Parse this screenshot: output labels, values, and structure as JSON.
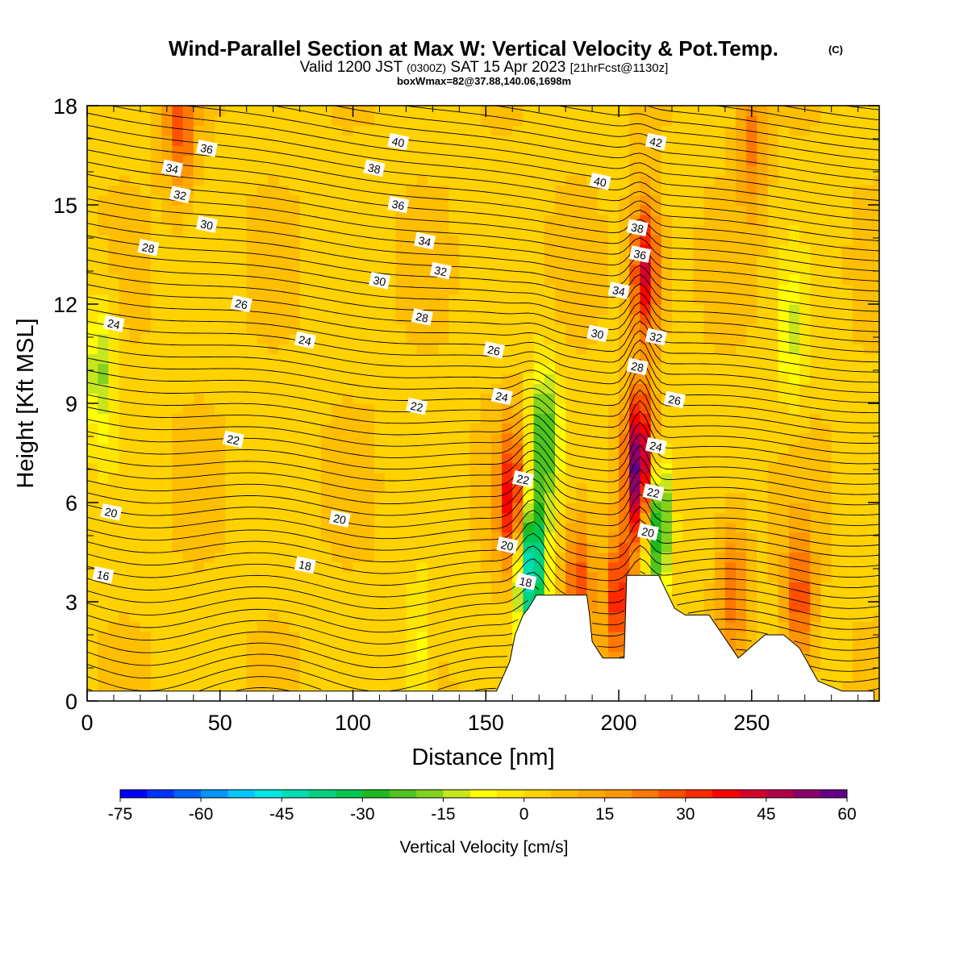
{
  "header": {
    "title": "Wind-Parallel Section at Max W: Vertical Velocity & Pot.Temp.",
    "copyright": "(C)",
    "valid_prefix": "Valid 1200 JST",
    "valid_z": "(0300Z)",
    "valid_date": "SAT 15 Apr 2023",
    "forecast": "[21hrFcst@1130z]",
    "boxwmax": "boxWmax=82@37.88,140.06,1698m"
  },
  "chart_data": {
    "type": "heatmap",
    "xlabel": "Distance [nm]",
    "ylabel": "Height [Kft MSL]",
    "xlim": [
      0,
      298
    ],
    "ylim": [
      0,
      18
    ],
    "xticks": [
      0,
      50,
      100,
      150,
      200,
      250
    ],
    "yticks": [
      0,
      3,
      6,
      9,
      12,
      15,
      18
    ],
    "colorbar": {
      "label": "Vertical Velocity [cm/s]",
      "min": -75,
      "max": 60,
      "step": 5,
      "tick_values": [
        -75,
        -60,
        -45,
        -30,
        -15,
        0,
        15,
        30,
        45,
        60
      ],
      "tick_labels": [
        "-75",
        "-60",
        "-45",
        "-30",
        "-15",
        "0",
        "15",
        "30",
        "45",
        "60"
      ],
      "colors": [
        "#0000ff",
        "#0032ff",
        "#0064ff",
        "#0096ff",
        "#00c8ff",
        "#00e6e6",
        "#00dcb4",
        "#00d282",
        "#00c850",
        "#1eb91e",
        "#50c31e",
        "#82d21e",
        "#c8e61e",
        "#ffff00",
        "#ffe600",
        "#ffd200",
        "#ffbe00",
        "#ffaa00",
        "#ff9600",
        "#ff7800",
        "#ff5000",
        "#ff2800",
        "#ff0000",
        "#d7002d",
        "#b4004b",
        "#8c0069",
        "#640087"
      ]
    },
    "w_features": [
      {
        "x": 5,
        "y": 10.0,
        "w": -20
      },
      {
        "x": 35,
        "y": 17.5,
        "w": 25
      },
      {
        "x": 125,
        "y": 1.5,
        "w": -12
      },
      {
        "x": 160,
        "y": 6.0,
        "w": 35
      },
      {
        "x": 167,
        "y": 4.0,
        "w": -55
      },
      {
        "x": 172,
        "y": 8.0,
        "w": -30
      },
      {
        "x": 185,
        "y": 3.5,
        "w": 25
      },
      {
        "x": 200,
        "y": 3.0,
        "w": 30
      },
      {
        "x": 208,
        "y": 7.0,
        "w": 60
      },
      {
        "x": 210,
        "y": 13.0,
        "w": 40
      },
      {
        "x": 214,
        "y": 5.5,
        "w": -45
      },
      {
        "x": 243,
        "y": 3.5,
        "w": 20
      },
      {
        "x": 265,
        "y": 11.0,
        "w": -15
      },
      {
        "x": 268,
        "y": 3.0,
        "w": 25
      },
      {
        "x": 250,
        "y": 17.0,
        "w": 18
      }
    ],
    "terrain": [
      [
        0,
        0.3
      ],
      [
        154,
        0.3
      ],
      [
        159,
        1.2
      ],
      [
        161,
        2.0
      ],
      [
        164,
        2.6
      ],
      [
        166,
        2.8
      ],
      [
        169,
        3.2
      ],
      [
        188,
        3.2
      ],
      [
        189,
        2.6
      ],
      [
        190,
        1.8
      ],
      [
        194,
        1.3
      ],
      [
        202,
        1.3
      ],
      [
        203,
        3.8
      ],
      [
        215,
        3.8
      ],
      [
        221,
        2.8
      ],
      [
        225,
        2.6
      ],
      [
        234,
        2.6
      ],
      [
        245,
        1.3
      ],
      [
        255,
        2.0
      ],
      [
        262,
        2.0
      ],
      [
        268,
        1.6
      ],
      [
        275,
        0.6
      ],
      [
        284,
        0.3
      ],
      [
        296,
        0.3
      ]
    ],
    "theta_levels": [
      16,
      18,
      20,
      22,
      24,
      26,
      28,
      30,
      32,
      34,
      36,
      38,
      40,
      42
    ],
    "contour_labels": [
      {
        "text": "36",
        "x": 45,
        "y": 16.7
      },
      {
        "text": "34",
        "x": 32,
        "y": 16.1
      },
      {
        "text": "32",
        "x": 35,
        "y": 15.3
      },
      {
        "text": "30",
        "x": 45,
        "y": 14.4
      },
      {
        "text": "28",
        "x": 23,
        "y": 13.7
      },
      {
        "text": "26",
        "x": 58,
        "y": 12.0
      },
      {
        "text": "24",
        "x": 10,
        "y": 11.4
      },
      {
        "text": "40",
        "x": 117,
        "y": 16.9
      },
      {
        "text": "38",
        "x": 108,
        "y": 16.1
      },
      {
        "text": "36",
        "x": 117,
        "y": 15.0
      },
      {
        "text": "34",
        "x": 127,
        "y": 13.9
      },
      {
        "text": "32",
        "x": 133,
        "y": 13.0
      },
      {
        "text": "30",
        "x": 110,
        "y": 12.7
      },
      {
        "text": "28",
        "x": 126,
        "y": 11.6
      },
      {
        "text": "26",
        "x": 153,
        "y": 10.6
      },
      {
        "text": "24",
        "x": 82,
        "y": 10.9
      },
      {
        "text": "24",
        "x": 156,
        "y": 9.2
      },
      {
        "text": "22",
        "x": 124,
        "y": 8.9
      },
      {
        "text": "22",
        "x": 55,
        "y": 7.9
      },
      {
        "text": "22",
        "x": 164,
        "y": 6.7
      },
      {
        "text": "20",
        "x": 9,
        "y": 5.7
      },
      {
        "text": "20",
        "x": 95,
        "y": 5.5
      },
      {
        "text": "20",
        "x": 158,
        "y": 4.7
      },
      {
        "text": "18",
        "x": 82,
        "y": 4.1
      },
      {
        "text": "18",
        "x": 165,
        "y": 3.6
      },
      {
        "text": "16",
        "x": 6,
        "y": 3.8
      },
      {
        "text": "40",
        "x": 193,
        "y": 15.7
      },
      {
        "text": "42",
        "x": 214,
        "y": 16.9
      },
      {
        "text": "38",
        "x": 207,
        "y": 14.3
      },
      {
        "text": "36",
        "x": 208,
        "y": 13.5
      },
      {
        "text": "34",
        "x": 200,
        "y": 12.4
      },
      {
        "text": "32",
        "x": 214,
        "y": 11.0
      },
      {
        "text": "30",
        "x": 192,
        "y": 11.1
      },
      {
        "text": "28",
        "x": 207,
        "y": 10.1
      },
      {
        "text": "26",
        "x": 221,
        "y": 9.1
      },
      {
        "text": "24",
        "x": 214,
        "y": 7.7
      },
      {
        "text": "22",
        "x": 213,
        "y": 6.3
      },
      {
        "text": "20",
        "x": 211,
        "y": 5.1
      }
    ]
  }
}
